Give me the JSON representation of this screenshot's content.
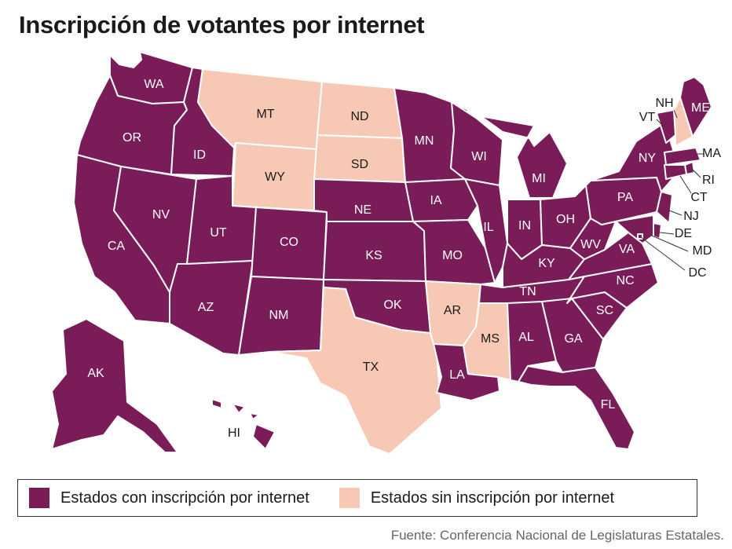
{
  "title": "Inscripción de votantes por internet",
  "colors": {
    "with_online": "#7a1c57",
    "without_online": "#f7c9b5",
    "label_on_dark": "#ffffff",
    "label_on_light": "#1a1a1a"
  },
  "legend": {
    "with_online": "Estados con inscripción por internet",
    "without_online": "Estados sin inscripción por internet"
  },
  "source": "Fuente: Conferencia Nacional de Legislaturas Estatales.",
  "states": [
    {
      "code": "WA",
      "online": true
    },
    {
      "code": "OR",
      "online": true
    },
    {
      "code": "CA",
      "online": true
    },
    {
      "code": "ID",
      "online": true
    },
    {
      "code": "NV",
      "online": true
    },
    {
      "code": "MT",
      "online": false
    },
    {
      "code": "WY",
      "online": false
    },
    {
      "code": "UT",
      "online": true
    },
    {
      "code": "AZ",
      "online": true
    },
    {
      "code": "CO",
      "online": true
    },
    {
      "code": "NM",
      "online": true
    },
    {
      "code": "ND",
      "online": false
    },
    {
      "code": "SD",
      "online": false
    },
    {
      "code": "NE",
      "online": true
    },
    {
      "code": "KS",
      "online": true
    },
    {
      "code": "OK",
      "online": true
    },
    {
      "code": "TX",
      "online": false
    },
    {
      "code": "MN",
      "online": true
    },
    {
      "code": "IA",
      "online": true
    },
    {
      "code": "MO",
      "online": true
    },
    {
      "code": "AR",
      "online": false
    },
    {
      "code": "LA",
      "online": true
    },
    {
      "code": "WI",
      "online": true
    },
    {
      "code": "IL",
      "online": true
    },
    {
      "code": "MI",
      "online": true
    },
    {
      "code": "IN",
      "online": true
    },
    {
      "code": "OH",
      "online": true
    },
    {
      "code": "KY",
      "online": true
    },
    {
      "code": "TN",
      "online": true
    },
    {
      "code": "MS",
      "online": false
    },
    {
      "code": "AL",
      "online": true
    },
    {
      "code": "GA",
      "online": true
    },
    {
      "code": "FL",
      "online": true
    },
    {
      "code": "SC",
      "online": true
    },
    {
      "code": "NC",
      "online": true
    },
    {
      "code": "VA",
      "online": true
    },
    {
      "code": "WV",
      "online": true
    },
    {
      "code": "PA",
      "online": true
    },
    {
      "code": "NY",
      "online": true
    },
    {
      "code": "VT",
      "online": true
    },
    {
      "code": "NH",
      "online": false
    },
    {
      "code": "ME",
      "online": true
    },
    {
      "code": "MA",
      "online": true
    },
    {
      "code": "RI",
      "online": true
    },
    {
      "code": "CT",
      "online": true
    },
    {
      "code": "NJ",
      "online": true
    },
    {
      "code": "DE",
      "online": true
    },
    {
      "code": "MD",
      "online": true
    },
    {
      "code": "DC",
      "online": true
    },
    {
      "code": "AK",
      "online": true
    },
    {
      "code": "HI",
      "online": true
    }
  ]
}
